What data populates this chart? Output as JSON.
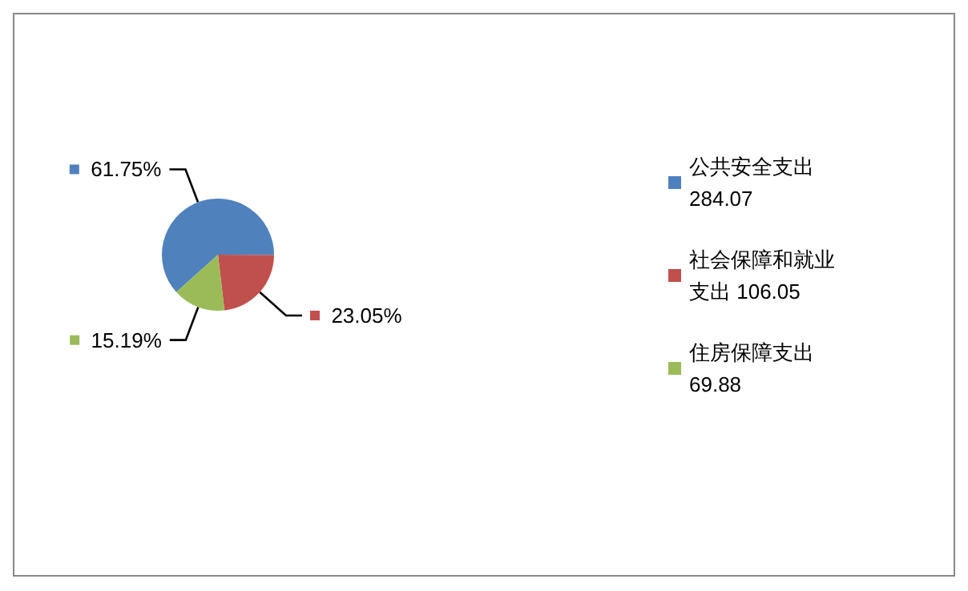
{
  "chart_data": {
    "type": "pie",
    "categories": [
      "公共安全支出 284.07",
      "社会保障和就业支出 106.05",
      "住房保障支出 69.88"
    ],
    "values": [
      61.75,
      23.05,
      15.19
    ],
    "colors": [
      "#4f81bd",
      "#c0504d",
      "#9bbb59"
    ],
    "value_labels": [
      "61.75%",
      "23.05%",
      "15.19%"
    ],
    "legend": "right"
  }
}
